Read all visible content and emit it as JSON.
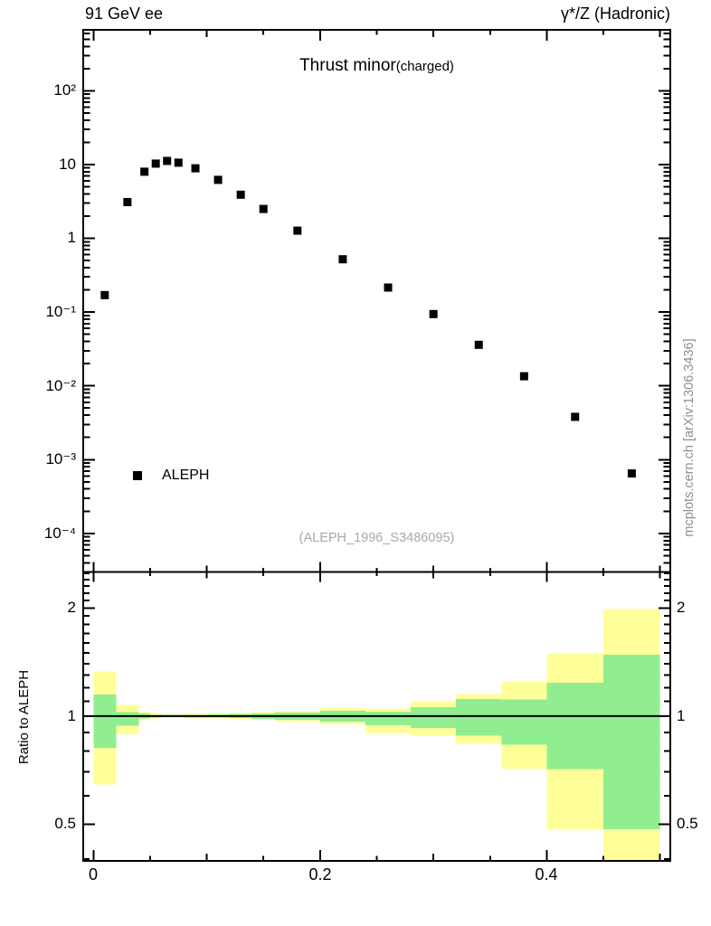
{
  "header": {
    "left": "91 GeV ee",
    "right": "γ*/Z (Hadronic)"
  },
  "title": {
    "main": "Thrust minor",
    "paren": "(charged)"
  },
  "legend": {
    "entries": [
      {
        "label": "ALEPH",
        "marker": "filled-black-square"
      }
    ]
  },
  "watermark": "(ALEPH_1996_S3486095)",
  "side_note": "mcplots.cern.ch [arXiv:1306.3436]",
  "colors": {
    "marker": "#000000",
    "band_outer": "#ffff99",
    "band_inner": "#90ee90",
    "frame": "#000000",
    "watermark_gray": "#a9a9a9",
    "note_gray": "#8e8e8e"
  },
  "chart_data": {
    "type": "scatter",
    "title": "Thrust minor (charged)",
    "x": {
      "lim": [
        -0.009,
        0.509
      ],
      "minor_step": 0.05,
      "ticks": [
        {
          "v": 0,
          "label": "0"
        },
        {
          "v": 0.2,
          "label": "0.2"
        },
        {
          "v": 0.4,
          "label": "0.4"
        }
      ]
    },
    "panels": [
      {
        "name": "main",
        "y_scale": "log10",
        "ylim": [
          3e-05,
          670
        ],
        "grid": false,
        "yticks": [
          {
            "v": 100,
            "label": "10²"
          },
          {
            "v": 10,
            "label": "10"
          },
          {
            "v": 1,
            "label": "1"
          },
          {
            "v": 0.1,
            "label": "10⁻¹"
          },
          {
            "v": 0.01,
            "label": "10⁻²"
          },
          {
            "v": 0.001,
            "label": "10⁻³"
          },
          {
            "v": 0.0001,
            "label": "10⁻⁴"
          }
        ],
        "series": [
          {
            "name": "ALEPH",
            "marker": "filled-square",
            "color": "#000000",
            "points": [
              [
                0.01,
                0.17
              ],
              [
                0.03,
                3.1
              ],
              [
                0.045,
                8.0
              ],
              [
                0.055,
                10.3
              ],
              [
                0.065,
                11.2
              ],
              [
                0.075,
                10.6
              ],
              [
                0.09,
                8.9
              ],
              [
                0.11,
                6.2
              ],
              [
                0.13,
                3.9
              ],
              [
                0.15,
                2.5
              ],
              [
                0.18,
                1.27
              ],
              [
                0.22,
                0.52
              ],
              [
                0.26,
                0.215
              ],
              [
                0.3,
                0.094
              ],
              [
                0.34,
                0.036
              ],
              [
                0.38,
                0.0135
              ],
              [
                0.425,
                0.0038
              ],
              [
                0.475,
                0.00065
              ]
            ]
          }
        ]
      },
      {
        "name": "ratio",
        "ylabel": "Ratio to ALEPH",
        "y_scale": "log10",
        "ylim": [
          0.395,
          2.52
        ],
        "reference_line": 1,
        "yticks": [
          {
            "v": 2,
            "label": "2"
          },
          {
            "v": 1,
            "label": "1"
          },
          {
            "v": 0.5,
            "label": "0.5"
          }
        ],
        "bands": {
          "outer_color": "#ffff99",
          "inner_color": "#90ee90",
          "bins": [
            {
              "x": [
                0.0,
                0.02
              ],
              "outer": [
                0.645,
                1.33
              ],
              "inner": [
                0.815,
                1.15
              ]
            },
            {
              "x": [
                0.02,
                0.04
              ],
              "outer": [
                0.89,
                1.075
              ],
              "inner": [
                0.94,
                1.025
              ]
            },
            {
              "x": [
                0.04,
                0.05
              ],
              "outer": [
                0.972,
                1.028
              ],
              "inner": [
                0.984,
                1.016
              ]
            },
            {
              "x": [
                0.05,
                0.06
              ],
              "outer": [
                0.986,
                1.014
              ],
              "inner": [
                0.991,
                1.009
              ]
            },
            {
              "x": [
                0.06,
                0.07
              ],
              "outer": [
                0.988,
                1.012
              ],
              "inner": [
                0.993,
                1.007
              ]
            },
            {
              "x": [
                0.07,
                0.08
              ],
              "outer": [
                0.988,
                1.012
              ],
              "inner": [
                0.993,
                1.007
              ]
            },
            {
              "x": [
                0.08,
                0.1
              ],
              "outer": [
                0.986,
                1.014
              ],
              "inner": [
                0.991,
                1.009
              ]
            },
            {
              "x": [
                0.1,
                0.12
              ],
              "outer": [
                0.984,
                1.016
              ],
              "inner": [
                0.99,
                1.01
              ]
            },
            {
              "x": [
                0.12,
                0.14
              ],
              "outer": [
                0.98,
                1.02
              ],
              "inner": [
                0.987,
                1.013
              ]
            },
            {
              "x": [
                0.14,
                0.16
              ],
              "outer": [
                0.975,
                1.025
              ],
              "inner": [
                0.983,
                1.017
              ]
            },
            {
              "x": [
                0.16,
                0.2
              ],
              "outer": [
                0.965,
                1.035
              ],
              "inner": [
                0.977,
                1.023
              ]
            },
            {
              "x": [
                0.2,
                0.24
              ],
              "outer": [
                0.947,
                1.053
              ],
              "inner": [
                0.966,
                1.034
              ]
            },
            {
              "x": [
                0.24,
                0.28
              ],
              "outer": [
                0.896,
                1.051
              ],
              "inner": [
                0.944,
                1.03
              ]
            },
            {
              "x": [
                0.28,
                0.32
              ],
              "outer": [
                0.883,
                1.096
              ],
              "inner": [
                0.927,
                1.06
              ]
            },
            {
              "x": [
                0.32,
                0.36
              ],
              "outer": [
                0.836,
                1.153
              ],
              "inner": [
                0.883,
                1.117
              ]
            },
            {
              "x": [
                0.36,
                0.4
              ],
              "outer": [
                0.714,
                1.25
              ],
              "inner": [
                0.833,
                1.113
              ]
            },
            {
              "x": [
                0.4,
                0.45
              ],
              "outer": [
                0.483,
                1.494
              ],
              "inner": [
                0.711,
                1.238
              ]
            },
            {
              "x": [
                0.45,
                0.5
              ],
              "outer": [
                0.393,
                1.988
              ],
              "inner": [
                0.484,
                1.482
              ]
            }
          ]
        }
      }
    ]
  }
}
